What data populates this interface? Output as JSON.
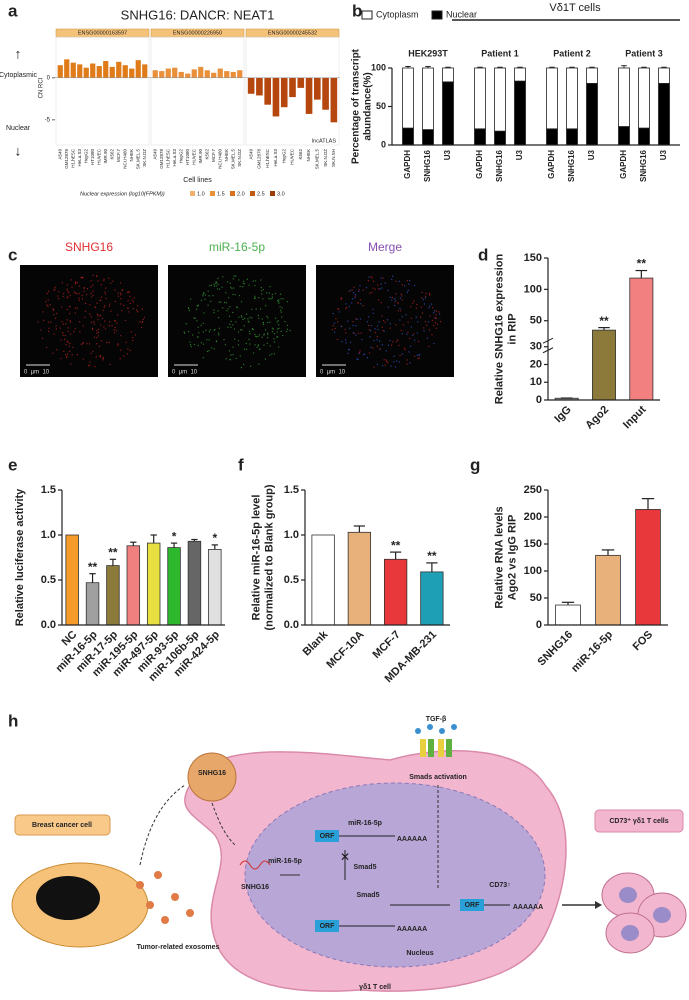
{
  "panels": [
    "a",
    "b",
    "c",
    "d",
    "e",
    "f",
    "g",
    "h"
  ],
  "chart_data": [
    {
      "type": "bar",
      "title": "SNHG16: DANCR: NEAT1",
      "x_label": "Cell lines",
      "y_label": "CN RCI",
      "annotations": {
        "up": "↑",
        "cytoplasmic": "Cytoplasmic",
        "nuclear": "Nuclear",
        "down": "↓",
        "source": "lncATLAS"
      },
      "groups": [
        {
          "name": "ENSG00000163597",
          "color": "#e07b1a",
          "categories": [
            "A549",
            "GM12878",
            "H1.hESC",
            "HeLa.S3",
            "HepG2",
            "HT1080",
            "HUVEC",
            "IMR.90",
            "K562",
            "MCF.7",
            "NCI.H460",
            "NHEK",
            "SK.MEL.5",
            "SK.N.DZ"
          ],
          "values": [
            1.5,
            2.2,
            1.8,
            1.6,
            1.2,
            1.7,
            1.4,
            2.0,
            1.3,
            1.9,
            1.5,
            1.1,
            2.1,
            1.6
          ]
        },
        {
          "name": "ENSG00000226950",
          "color": "#e8903a",
          "categories": [
            "A549",
            "GM12878",
            "H1.hESC",
            "HeLa.S3",
            "HepG2",
            "HT1080",
            "HUVEC",
            "IMR.90",
            "K562",
            "MCF.7",
            "NCI.H460",
            "NHEK",
            "SK.MEL.5",
            "SK.N.DZ"
          ],
          "values": [
            0.9,
            0.8,
            1.1,
            1.2,
            0.7,
            0.5,
            1.0,
            1.3,
            0.9,
            0.6,
            1.1,
            0.8,
            0.7,
            0.9
          ]
        },
        {
          "name": "ENSG00000245532",
          "color": "#b4460e",
          "categories": [
            "A549",
            "GM12878",
            "H1.hESC",
            "HeLa.S3",
            "HepG2",
            "HUVEC",
            "K562",
            "NHEK",
            "SK.MEL.5",
            "SK.N.DZ",
            "SK.N.SH"
          ],
          "values": [
            -1.9,
            -2.1,
            -3.2,
            -4.6,
            -3.5,
            -2.3,
            -1.2,
            -4.3,
            -2.6,
            -3.8,
            -5.3
          ]
        }
      ],
      "ylim": [
        -8,
        4.5
      ],
      "yticks": [
        0,
        -5
      ],
      "legend": {
        "title": "Nuclear expression (log10(FPKM))",
        "levels": [
          {
            "label": "1.0",
            "color": "#f2b070"
          },
          {
            "label": "1.5",
            "color": "#e8903a"
          },
          {
            "label": "2.0",
            "color": "#d9701e"
          },
          {
            "label": "2.5",
            "color": "#c05a12"
          },
          {
            "label": "3.0",
            "color": "#9a3c08"
          }
        ]
      }
    },
    {
      "type": "stacked_bar",
      "header": "Vδ1T cells",
      "y_label": [
        "Percentage of transcript",
        "abundance(%)"
      ],
      "groups": [
        "HEK293T",
        "Patient 1",
        "Patient 2",
        "Patient 3"
      ],
      "categories": [
        "GAPDH",
        "SNHG16",
        "U3",
        "GAPDH",
        "SNHG16",
        "U3",
        "GAPDH",
        "SNHG16",
        "U3",
        "GAPDH",
        "SNHG16",
        "U3"
      ],
      "series": [
        {
          "name": "Cytoplasm",
          "color": "#ffffff",
          "values": [
            78,
            80,
            18,
            79,
            82,
            17,
            79,
            79,
            20,
            76,
            78,
            20
          ],
          "errors": [
            2,
            2,
            1,
            1,
            1,
            1,
            1,
            1,
            1,
            3,
            1,
            1
          ]
        },
        {
          "name": "Nuclear",
          "color": "#000000",
          "values": [
            22,
            20,
            82,
            21,
            18,
            83,
            21,
            21,
            80,
            24,
            22,
            80
          ],
          "errors": [
            3,
            3,
            3,
            1,
            2,
            1,
            1,
            1,
            3,
            4,
            2,
            2
          ]
        }
      ],
      "ylim": [
        0,
        100
      ],
      "yticks": [
        0,
        50,
        100
      ]
    },
    {
      "type": "bar",
      "y_label": [
        "Relative SNHG16 expression",
        "in RIP"
      ],
      "categories": [
        "IgG",
        "Ago2",
        "Input"
      ],
      "values": [
        1,
        35,
        118
      ],
      "errors": [
        0.1,
        4,
        12
      ],
      "colors": [
        "#9a9a9a",
        "#8b7a3a",
        "#f28080"
      ],
      "significance": [
        null,
        "**",
        "**"
      ],
      "ylim_segments": [
        [
          0,
          32
        ],
        [
          30,
          150
        ]
      ],
      "yticks": [
        0,
        10,
        20,
        30,
        50,
        100,
        150
      ]
    },
    {
      "type": "bar",
      "y_label": [
        "Relative luciferase activity"
      ],
      "categories": [
        "NC",
        "miR-16-5p",
        "miR-17-5p",
        "miR-195-5p",
        "miR-497-5p",
        "miR-93-5p",
        "miR-106b-5p",
        "miR-424-5p"
      ],
      "values": [
        1.0,
        0.47,
        0.66,
        0.88,
        0.91,
        0.86,
        0.93,
        0.84
      ],
      "errors": [
        0,
        0.1,
        0.07,
        0.04,
        0.09,
        0.05,
        0.02,
        0.05
      ],
      "colors": [
        "#f59b2a",
        "#a0a0a0",
        "#8b7a3a",
        "#f08080",
        "#e8e040",
        "#2db82d",
        "#666666",
        "#e0e0e0"
      ],
      "significance": [
        null,
        "**",
        "**",
        null,
        null,
        "*",
        null,
        "*"
      ],
      "ylim": [
        0,
        1.5
      ],
      "yticks": [
        {
          "value": 0,
          "label": "0.0"
        },
        0.5,
        {
          "value": 1,
          "label": "1.0"
        },
        1.5
      ]
    },
    {
      "type": "bar",
      "y_label": [
        "Relative miR-16-5p level",
        "(normalized to Blank group)"
      ],
      "categories": [
        "Blank",
        "MCF-10A",
        "MCF-7",
        "MDA-MB-231"
      ],
      "values": [
        1.0,
        1.03,
        0.73,
        0.59
      ],
      "errors": [
        0,
        0.07,
        0.08,
        0.1
      ],
      "colors": [
        "#ffffff",
        "#e8b07a",
        "#e8383c",
        "#1f9fb5"
      ],
      "significance": [
        null,
        null,
        "**",
        "**"
      ],
      "ylim": [
        0,
        1.5
      ],
      "yticks": [
        {
          "value": 0,
          "label": "0.0"
        },
        0.5,
        {
          "value": 1,
          "label": "1.0"
        },
        1.5
      ]
    },
    {
      "type": "bar",
      "y_label": [
        "Relative RNA levels",
        "Ago2 vs IgG RIP"
      ],
      "categories": [
        "SNHG16",
        "miR-16-5p",
        "FOS"
      ],
      "values": [
        37,
        129,
        214
      ],
      "errors": [
        5,
        10,
        20
      ],
      "colors": [
        "#ffffff",
        "#e8b07a",
        "#e8383c"
      ],
      "ylim": [
        0,
        250
      ],
      "yticks": [
        0,
        50,
        100,
        150,
        200,
        250
      ]
    }
  ],
  "images": [
    {
      "title": "SNHG16",
      "scale": "0  μm  10"
    },
    {
      "title": "miR-16-5p",
      "scale": "0  μm  10"
    },
    {
      "title": "Merge",
      "scale": "0  μm  10"
    }
  ],
  "diagram": {
    "labels": {
      "tgf": "TGF-β",
      "smads": "Smads activation",
      "breast": "Breast cancer cell",
      "exosome": "SNHG16",
      "exosomes": "Tumor-related exosomes",
      "mir_cyto": "miR-16-5p",
      "snhg16_cyto": "SNHG16",
      "orf1": "ORF",
      "mir_nuc": "miR-16-5p",
      "polyA1": "AAAAAA",
      "smad5_blocked": "Smad5",
      "smad5": "Smad5",
      "orf2": "ORF",
      "cd73": "CD73↑",
      "polyA2": "AAAAAA",
      "orf3": "ORF",
      "polyA3": "AAAAAA",
      "nucleus": "Nucleus",
      "cell": "γδ1 T cell",
      "result": "CD73⁺ γδ1 T cells"
    }
  }
}
